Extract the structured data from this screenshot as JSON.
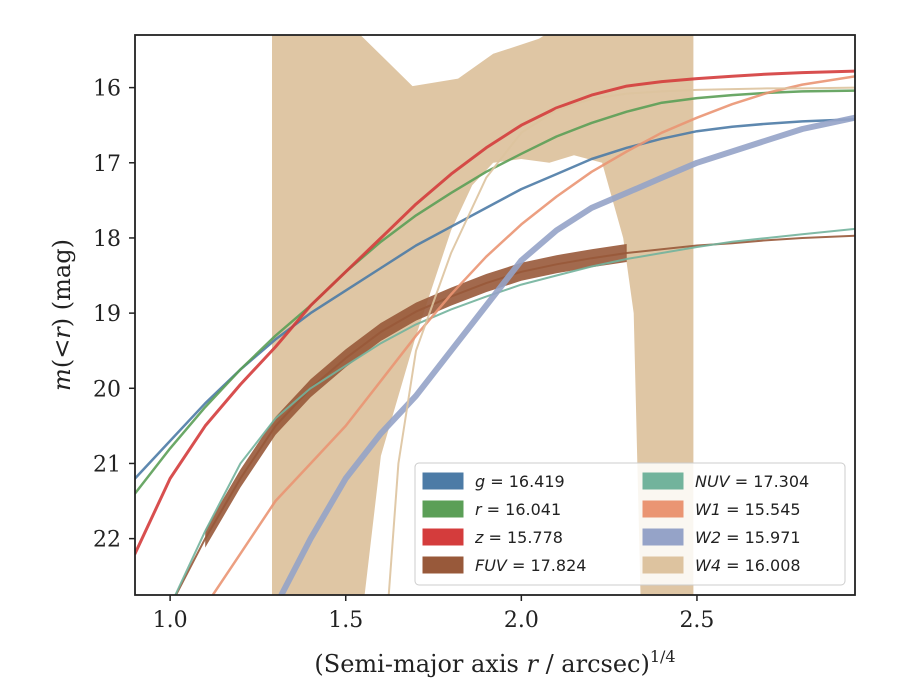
{
  "chart_data": {
    "type": "line",
    "title": "",
    "xlabel_main": "(Semi-major axis ",
    "xlabel_var": "r",
    "xlabel_rest": " / arcsec)",
    "xlabel_sup": "1/4",
    "ylabel_m": "m",
    "ylabel_mid": "(<",
    "ylabel_r": "r",
    "ylabel_end": ") (mag)",
    "xlim": [
      0.9,
      2.95
    ],
    "ylim": [
      22.75,
      15.3
    ],
    "y_inverted": true,
    "x_ticks": [
      "1.0",
      "1.5",
      "2.0",
      "2.5"
    ],
    "x_tick_values": [
      1.0,
      1.5,
      2.0,
      2.5
    ],
    "y_ticks": [
      "16",
      "17",
      "18",
      "19",
      "20",
      "21",
      "22"
    ],
    "y_tick_values": [
      16,
      17,
      18,
      19,
      20,
      21,
      22
    ],
    "legend_position": "lower-right",
    "legend_columns": 2,
    "series": [
      {
        "name": "g = 16.419",
        "sym": "g",
        "val": "16.419",
        "color": "#4c7ba6",
        "lw": 2.5,
        "x": [
          0.9,
          1.0,
          1.1,
          1.2,
          1.3,
          1.4,
          1.5,
          1.6,
          1.7,
          1.8,
          1.9,
          2.0,
          2.1,
          2.2,
          2.3,
          2.4,
          2.5,
          2.6,
          2.7,
          2.8,
          2.95
        ],
        "y": [
          21.2,
          20.7,
          20.2,
          19.75,
          19.35,
          19.0,
          18.7,
          18.4,
          18.1,
          17.85,
          17.6,
          17.35,
          17.15,
          16.95,
          16.8,
          16.68,
          16.58,
          16.52,
          16.48,
          16.45,
          16.42
        ]
      },
      {
        "name": "r = 16.041",
        "sym": "r",
        "val": "16.041",
        "color": "#5b9f57",
        "lw": 2.5,
        "x": [
          0.9,
          1.0,
          1.1,
          1.2,
          1.3,
          1.4,
          1.5,
          1.6,
          1.7,
          1.8,
          1.9,
          2.0,
          2.1,
          2.2,
          2.3,
          2.4,
          2.5,
          2.6,
          2.7,
          2.8,
          2.95
        ],
        "y": [
          21.4,
          20.8,
          20.25,
          19.75,
          19.3,
          18.9,
          18.45,
          18.05,
          17.7,
          17.4,
          17.12,
          16.88,
          16.65,
          16.47,
          16.32,
          16.2,
          16.14,
          16.1,
          16.07,
          16.05,
          16.04
        ]
      },
      {
        "name": "z = 15.778",
        "sym": "z",
        "val": "15.778",
        "color": "#d43c3c",
        "lw": 3,
        "x": [
          0.9,
          1.0,
          1.1,
          1.2,
          1.3,
          1.4,
          1.5,
          1.6,
          1.7,
          1.8,
          1.9,
          2.0,
          2.1,
          2.2,
          2.3,
          2.4,
          2.5,
          2.6,
          2.7,
          2.8,
          2.95
        ],
        "y": [
          22.2,
          21.2,
          20.5,
          19.95,
          19.45,
          18.9,
          18.45,
          18.0,
          17.55,
          17.15,
          16.8,
          16.5,
          16.27,
          16.1,
          15.98,
          15.92,
          15.88,
          15.85,
          15.82,
          15.8,
          15.78
        ]
      },
      {
        "name": "FUV = 17.824",
        "sym": "FUV",
        "val": "17.824",
        "color": "#98593a",
        "lw": 2,
        "x": [
          1.0,
          1.1,
          1.2,
          1.3,
          1.4,
          1.5,
          1.6,
          1.7,
          1.8,
          1.9,
          2.0,
          2.1,
          2.2,
          2.3,
          2.4,
          2.5,
          2.6,
          2.7,
          2.8,
          2.95
        ],
        "y": [
          22.9,
          22.0,
          21.2,
          20.5,
          20.0,
          19.6,
          19.25,
          18.98,
          18.78,
          18.6,
          18.45,
          18.35,
          18.27,
          18.2,
          18.15,
          18.1,
          18.07,
          18.03,
          18.0,
          17.97
        ]
      },
      {
        "name": "NUV = 17.304",
        "sym": "NUV",
        "val": "17.304",
        "color": "#72b39c",
        "lw": 2,
        "x": [
          1.0,
          1.1,
          1.2,
          1.3,
          1.4,
          1.5,
          1.6,
          1.7,
          1.8,
          1.9,
          2.0,
          2.1,
          2.2,
          2.3,
          2.4,
          2.5,
          2.6,
          2.7,
          2.8,
          2.95
        ],
        "y": [
          22.9,
          21.9,
          21.0,
          20.4,
          20.0,
          19.7,
          19.4,
          19.15,
          18.95,
          18.78,
          18.62,
          18.5,
          18.38,
          18.28,
          18.2,
          18.12,
          18.05,
          18.0,
          17.95,
          17.88
        ]
      },
      {
        "name": "W1 = 15.545",
        "sym": "W1",
        "val": "15.545",
        "color": "#ea9573",
        "lw": 2.5,
        "x": [
          1.1,
          1.2,
          1.3,
          1.4,
          1.5,
          1.6,
          1.7,
          1.8,
          1.9,
          2.0,
          2.1,
          2.2,
          2.3,
          2.4,
          2.5,
          2.6,
          2.7,
          2.8,
          2.95
        ],
        "y": [
          22.9,
          22.2,
          21.5,
          21.0,
          20.5,
          19.9,
          19.3,
          18.75,
          18.25,
          17.82,
          17.45,
          17.12,
          16.85,
          16.6,
          16.4,
          16.22,
          16.07,
          15.96,
          15.85
        ]
      },
      {
        "name": "W2 = 15.971",
        "sym": "W2",
        "val": "15.971",
        "color": "#95a3c8",
        "lw": 6,
        "x": [
          1.3,
          1.4,
          1.5,
          1.6,
          1.7,
          1.8,
          1.9,
          2.0,
          2.1,
          2.2,
          2.3,
          2.4,
          2.5,
          2.6,
          2.7,
          2.8,
          2.95
        ],
        "y": [
          22.9,
          22.0,
          21.2,
          20.6,
          20.1,
          19.5,
          18.9,
          18.3,
          17.9,
          17.6,
          17.4,
          17.2,
          17.0,
          16.85,
          16.7,
          16.55,
          16.4
        ]
      },
      {
        "name": "W4 = 16.008",
        "sym": "W4",
        "val": "16.008",
        "color": "#ddc39f",
        "lw": 2,
        "x": [
          1.62,
          1.65,
          1.7,
          1.8,
          1.9,
          2.0,
          2.1,
          2.2,
          2.3,
          2.4,
          2.5,
          2.6,
          2.7,
          2.8,
          2.95
        ],
        "y": [
          22.9,
          21.0,
          19.5,
          18.2,
          17.2,
          16.6,
          16.3,
          16.15,
          16.08,
          16.05,
          16.03,
          16.02,
          16.01,
          16.01,
          16.0
        ]
      }
    ],
    "w4_band": {
      "x": [
        1.29,
        1.4,
        1.52,
        1.69,
        1.82,
        1.92,
        2.05,
        2.2,
        2.49,
        2.49,
        2.42,
        2.35,
        2.29,
        2.24,
        2.15,
        2.05,
        1.95,
        1.85,
        1.75,
        1.65,
        1.55,
        1.45,
        1.29
      ],
      "upper": [
        15.2,
        15.2,
        15.2,
        15.98,
        15.87,
        15.55,
        15.35,
        15.2,
        15.2,
        15.2,
        15.2,
        15.2,
        15.2,
        15.2,
        15.2,
        15.2,
        15.2,
        15.2,
        15.2,
        15.2,
        15.2,
        15.2,
        15.2
      ],
      "polygon": [
        [
          1.29,
          15.2
        ],
        [
          2.49,
          15.2
        ],
        [
          2.49,
          22.9
        ],
        [
          2.34,
          22.9
        ],
        [
          2.32,
          19.0
        ],
        [
          2.29,
          18.0
        ],
        [
          2.23,
          17.0
        ],
        [
          2.15,
          16.9
        ],
        [
          2.08,
          17.0
        ],
        [
          2.0,
          16.95
        ],
        [
          1.92,
          17.0
        ],
        [
          1.86,
          17.3
        ],
        [
          1.8,
          17.9
        ],
        [
          1.7,
          19.3
        ],
        [
          1.6,
          20.9
        ],
        [
          1.55,
          22.9
        ],
        [
          1.29,
          22.9
        ]
      ],
      "top_notch": [
        [
          1.52,
          15.2
        ],
        [
          1.69,
          15.98
        ],
        [
          1.82,
          15.88
        ],
        [
          1.92,
          15.55
        ],
        [
          2.05,
          15.35
        ],
        [
          2.1,
          15.2
        ]
      ],
      "color": "#ddc39f"
    }
  }
}
